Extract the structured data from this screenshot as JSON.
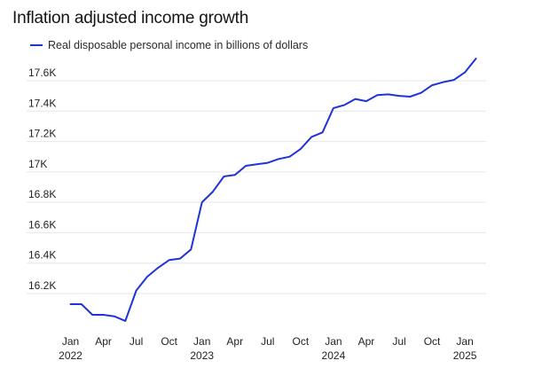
{
  "chart_data": {
    "type": "line",
    "title": "Inflation adjusted income growth",
    "xlabel": "",
    "ylabel": "",
    "ylim": [
      16000,
      17800
    ],
    "grid": "horizontal",
    "legend_placement": "top-left",
    "y_ticks": [
      {
        "value": 16200,
        "label": "16.2K"
      },
      {
        "value": 16400,
        "label": "16.4K"
      },
      {
        "value": 16600,
        "label": "16.6K"
      },
      {
        "value": 16800,
        "label": "16.8K"
      },
      {
        "value": 17000,
        "label": "17K"
      },
      {
        "value": 17200,
        "label": "17.2K"
      },
      {
        "value": 17400,
        "label": "17.4K"
      },
      {
        "value": 17600,
        "label": "17.6K"
      }
    ],
    "x_ticks": [
      {
        "date": "2022-01",
        "label": "Jan",
        "year": "2022"
      },
      {
        "date": "2022-04",
        "label": "Apr",
        "year": ""
      },
      {
        "date": "2022-07",
        "label": "Jul",
        "year": ""
      },
      {
        "date": "2022-10",
        "label": "Oct",
        "year": ""
      },
      {
        "date": "2023-01",
        "label": "Jan",
        "year": "2023"
      },
      {
        "date": "2023-04",
        "label": "Apr",
        "year": ""
      },
      {
        "date": "2023-07",
        "label": "Jul",
        "year": ""
      },
      {
        "date": "2023-10",
        "label": "Oct",
        "year": ""
      },
      {
        "date": "2024-01",
        "label": "Jan",
        "year": "2024"
      },
      {
        "date": "2024-04",
        "label": "Apr",
        "year": ""
      },
      {
        "date": "2024-07",
        "label": "Jul",
        "year": ""
      },
      {
        "date": "2024-10",
        "label": "Oct",
        "year": ""
      },
      {
        "date": "2025-01",
        "label": "Jan",
        "year": "2025"
      }
    ],
    "x": [
      "2022-01",
      "2022-02",
      "2022-03",
      "2022-04",
      "2022-05",
      "2022-06",
      "2022-07",
      "2022-08",
      "2022-09",
      "2022-10",
      "2022-11",
      "2022-12",
      "2023-01",
      "2023-02",
      "2023-03",
      "2023-04",
      "2023-05",
      "2023-06",
      "2023-07",
      "2023-08",
      "2023-09",
      "2023-10",
      "2023-11",
      "2023-12",
      "2024-01",
      "2024-02",
      "2024-03",
      "2024-04",
      "2024-05",
      "2024-06",
      "2024-07",
      "2024-08",
      "2024-09",
      "2024-10",
      "2024-11",
      "2024-12",
      "2025-01",
      "2025-02"
    ],
    "series": [
      {
        "name": "Real disposable personal income in billions of dollars",
        "color": "#1f34d6",
        "values": [
          16130,
          16130,
          16060,
          16060,
          16050,
          16020,
          16220,
          16310,
          16370,
          16420,
          16430,
          16490,
          16800,
          16870,
          16970,
          16980,
          17040,
          17050,
          17060,
          17085,
          17100,
          17150,
          17230,
          17260,
          17420,
          17440,
          17480,
          17465,
          17505,
          17510,
          17500,
          17495,
          17520,
          17570,
          17590,
          17605,
          17655,
          17745
        ]
      }
    ]
  }
}
